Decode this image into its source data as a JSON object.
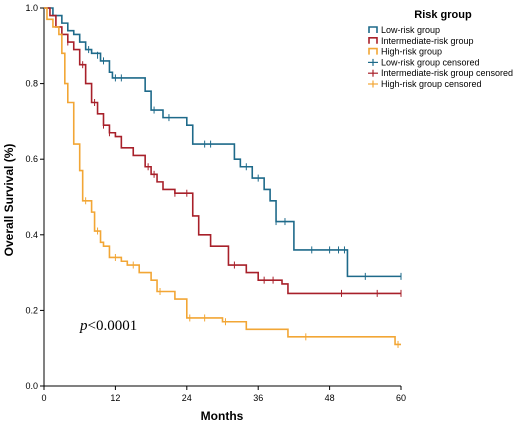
{
  "chart_data": {
    "type": "line",
    "xlabel": "Months",
    "ylabel": "Overall Survival (%)",
    "xlim": [
      0,
      60
    ],
    "ylim": [
      0,
      1.0
    ],
    "x_ticks": [
      "0",
      "12",
      "24",
      "36",
      "48",
      "60"
    ],
    "y_ticks": [
      "0.0",
      "0.2",
      "0.4",
      "0.6",
      "0.8",
      "1.0"
    ],
    "grid": false,
    "legend_title": "Risk group",
    "legend_position": "top-right",
    "legend_entries": [
      "Low-risk group",
      "Intermediate-risk group",
      "High-risk group",
      "Low-risk group censored",
      "Intermediate-risk group censored",
      "High-risk group censored"
    ],
    "annotation": {
      "italic": "p",
      "text": "<0.0001"
    },
    "series": [
      {
        "name": "Low-risk group",
        "color": "#1e6a8a",
        "step_points": [
          [
            0,
            1.0
          ],
          [
            1.5,
            0.98
          ],
          [
            3,
            0.96
          ],
          [
            4,
            0.94
          ],
          [
            5,
            0.93
          ],
          [
            6,
            0.91
          ],
          [
            7,
            0.89
          ],
          [
            8,
            0.88
          ],
          [
            9.5,
            0.86
          ],
          [
            11,
            0.83
          ],
          [
            11.5,
            0.815
          ],
          [
            17,
            0.78
          ],
          [
            18,
            0.73
          ],
          [
            20,
            0.71
          ],
          [
            24,
            0.69
          ],
          [
            25,
            0.64
          ],
          [
            32,
            0.6
          ],
          [
            33,
            0.58
          ],
          [
            35,
            0.55
          ],
          [
            37,
            0.52
          ],
          [
            38,
            0.49
          ],
          [
            39,
            0.435
          ],
          [
            42,
            0.36
          ],
          [
            51,
            0.29
          ],
          [
            60,
            0.29
          ]
        ],
        "censored": [
          [
            7.5,
            0.89
          ],
          [
            9,
            0.875
          ],
          [
            10,
            0.86
          ],
          [
            12,
            0.815
          ],
          [
            13,
            0.815
          ],
          [
            18.5,
            0.73
          ],
          [
            21,
            0.71
          ],
          [
            27,
            0.64
          ],
          [
            28,
            0.64
          ],
          [
            34,
            0.58
          ],
          [
            36,
            0.55
          ],
          [
            39,
            0.435
          ],
          [
            40.5,
            0.435
          ],
          [
            45,
            0.36
          ],
          [
            48,
            0.36
          ],
          [
            49.5,
            0.36
          ],
          [
            50.5,
            0.36
          ],
          [
            54,
            0.29
          ],
          [
            60,
            0.29
          ]
        ]
      },
      {
        "name": "Intermediate-risk group",
        "color": "#a8202a",
        "step_points": [
          [
            0,
            1.0
          ],
          [
            1,
            0.98
          ],
          [
            2,
            0.95
          ],
          [
            3,
            0.93
          ],
          [
            4,
            0.91
          ],
          [
            5,
            0.89
          ],
          [
            6,
            0.85
          ],
          [
            7,
            0.8
          ],
          [
            8,
            0.75
          ],
          [
            9,
            0.72
          ],
          [
            10,
            0.69
          ],
          [
            11,
            0.67
          ],
          [
            12,
            0.66
          ],
          [
            13,
            0.63
          ],
          [
            15,
            0.61
          ],
          [
            17,
            0.58
          ],
          [
            18,
            0.56
          ],
          [
            19,
            0.54
          ],
          [
            20,
            0.52
          ],
          [
            22,
            0.51
          ],
          [
            25,
            0.45
          ],
          [
            26,
            0.4
          ],
          [
            28,
            0.37
          ],
          [
            31,
            0.32
          ],
          [
            34,
            0.3
          ],
          [
            36,
            0.28
          ],
          [
            40,
            0.27
          ],
          [
            41,
            0.245
          ],
          [
            60,
            0.245
          ]
        ],
        "censored": [
          [
            4,
            0.91
          ],
          [
            6.5,
            0.85
          ],
          [
            8.5,
            0.75
          ],
          [
            10,
            0.69
          ],
          [
            11,
            0.67
          ],
          [
            17.5,
            0.58
          ],
          [
            18.5,
            0.56
          ],
          [
            22,
            0.51
          ],
          [
            24,
            0.51
          ],
          [
            32,
            0.32
          ],
          [
            37,
            0.28
          ],
          [
            38.5,
            0.28
          ],
          [
            50,
            0.245
          ],
          [
            56,
            0.245
          ],
          [
            60,
            0.245
          ]
        ]
      },
      {
        "name": "High-risk group",
        "color": "#f2a635",
        "step_points": [
          [
            0,
            1.0
          ],
          [
            0.5,
            0.97
          ],
          [
            1.5,
            0.95
          ],
          [
            2.5,
            0.93
          ],
          [
            3,
            0.88
          ],
          [
            3.5,
            0.8
          ],
          [
            4,
            0.75
          ],
          [
            5,
            0.64
          ],
          [
            6,
            0.57
          ],
          [
            6.5,
            0.49
          ],
          [
            8,
            0.46
          ],
          [
            8.5,
            0.41
          ],
          [
            9.5,
            0.38
          ],
          [
            10,
            0.37
          ],
          [
            11,
            0.34
          ],
          [
            13,
            0.33
          ],
          [
            14,
            0.32
          ],
          [
            16,
            0.3
          ],
          [
            18,
            0.28
          ],
          [
            19,
            0.25
          ],
          [
            22,
            0.23
          ],
          [
            24,
            0.18
          ],
          [
            30,
            0.17
          ],
          [
            34,
            0.15
          ],
          [
            41,
            0.13
          ],
          [
            59,
            0.11
          ],
          [
            60,
            0.11
          ]
        ],
        "censored": [
          [
            7,
            0.49
          ],
          [
            9,
            0.41
          ],
          [
            12,
            0.34
          ],
          [
            15,
            0.32
          ],
          [
            19.5,
            0.25
          ],
          [
            24.5,
            0.18
          ],
          [
            27,
            0.18
          ],
          [
            30.5,
            0.17
          ],
          [
            44,
            0.13
          ],
          [
            59.5,
            0.11
          ]
        ]
      }
    ]
  }
}
